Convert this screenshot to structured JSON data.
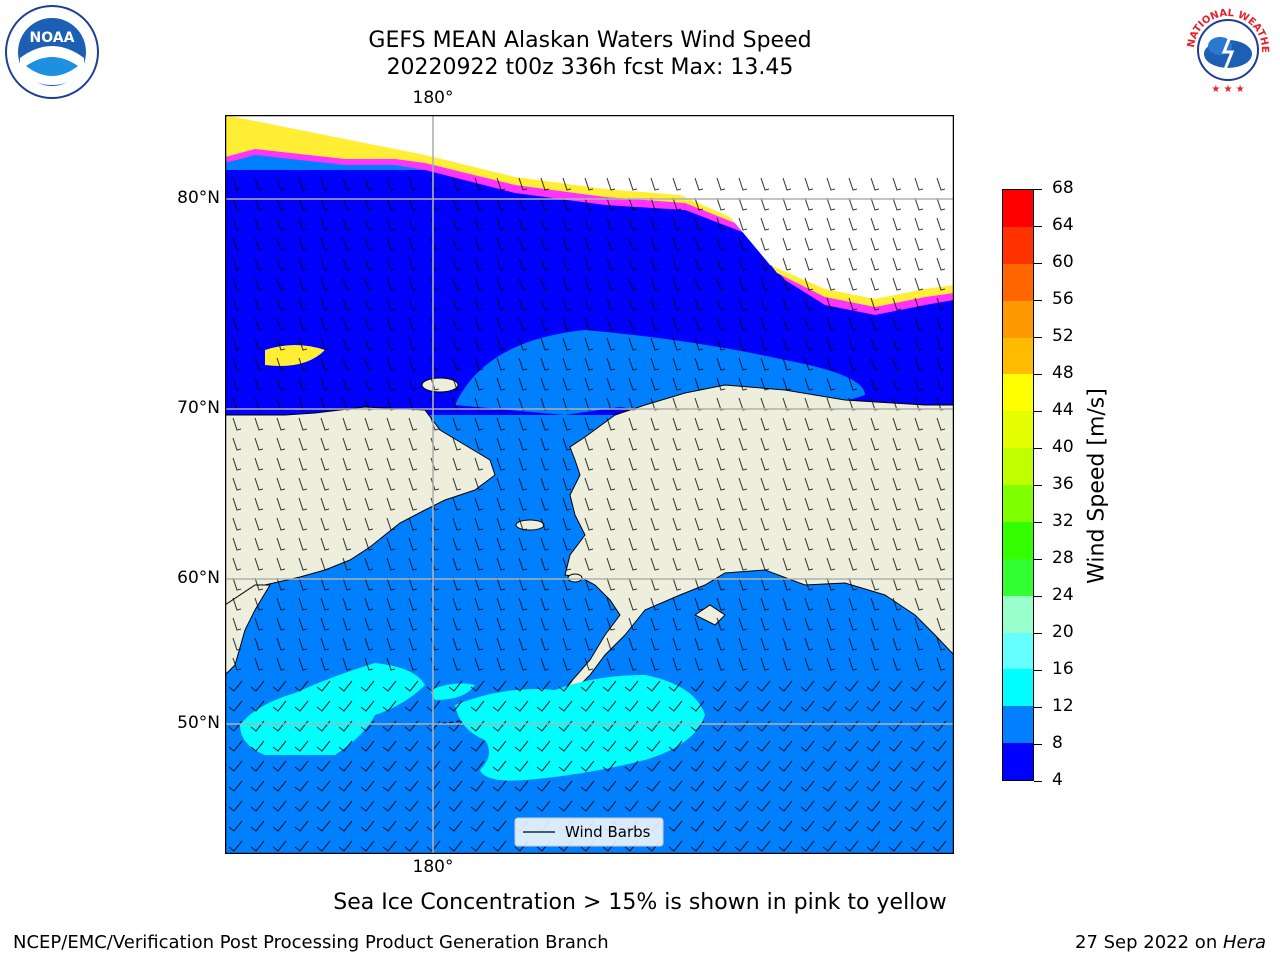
{
  "header": {
    "title_line1": "GEFS MEAN Alaskan Waters Wind Speed",
    "title_line2": "20220922 t00z 336h fcst   Max: 13.45"
  },
  "logos": {
    "left": {
      "icon": "noaa-logo-icon",
      "text": "NOAA"
    },
    "right": {
      "icon": "nws-logo-icon",
      "text": "NATIONAL WEATHER SERVICE"
    }
  },
  "map": {
    "lon_label_top": "180°",
    "lon_label_bottom": "180°",
    "lat_labels": [
      "80°N",
      "70°N",
      "60°N",
      "50°N"
    ],
    "legend_label": "Wind Barbs",
    "colors": {
      "land": "#eeeedc",
      "wind_4_8": "#0000ff",
      "wind_8_12": "#0080ff",
      "wind_12_16": "#00ffff",
      "ice": "#ffffff",
      "ice_edge_pink": "#ff33ff",
      "ice_edge_yellow": "#ffee33",
      "grid": "#b0b0b0"
    }
  },
  "colorbar": {
    "label": "Wind Speed [m/s]",
    "ticks": [
      "68",
      "64",
      "60",
      "56",
      "52",
      "48",
      "44",
      "40",
      "36",
      "32",
      "28",
      "24",
      "20",
      "16",
      "12",
      "8",
      "4"
    ],
    "colors": [
      "#ff0000",
      "#ff3300",
      "#ff6600",
      "#ff9900",
      "#ffbb00",
      "#ffff00",
      "#e6ff00",
      "#c0ff00",
      "#80ff00",
      "#33ff00",
      "#33ff33",
      "#99ffcc",
      "#66ffff",
      "#00ffff",
      "#0080ff",
      "#0000ff"
    ]
  },
  "note": "Sea Ice Concentration > 15% is shown in pink to yellow",
  "footer": {
    "left": "NCEP/EMC/Verification Post Processing Product Generation Branch",
    "right_date": "27 Sep 2022 on ",
    "right_host": "Hera"
  }
}
